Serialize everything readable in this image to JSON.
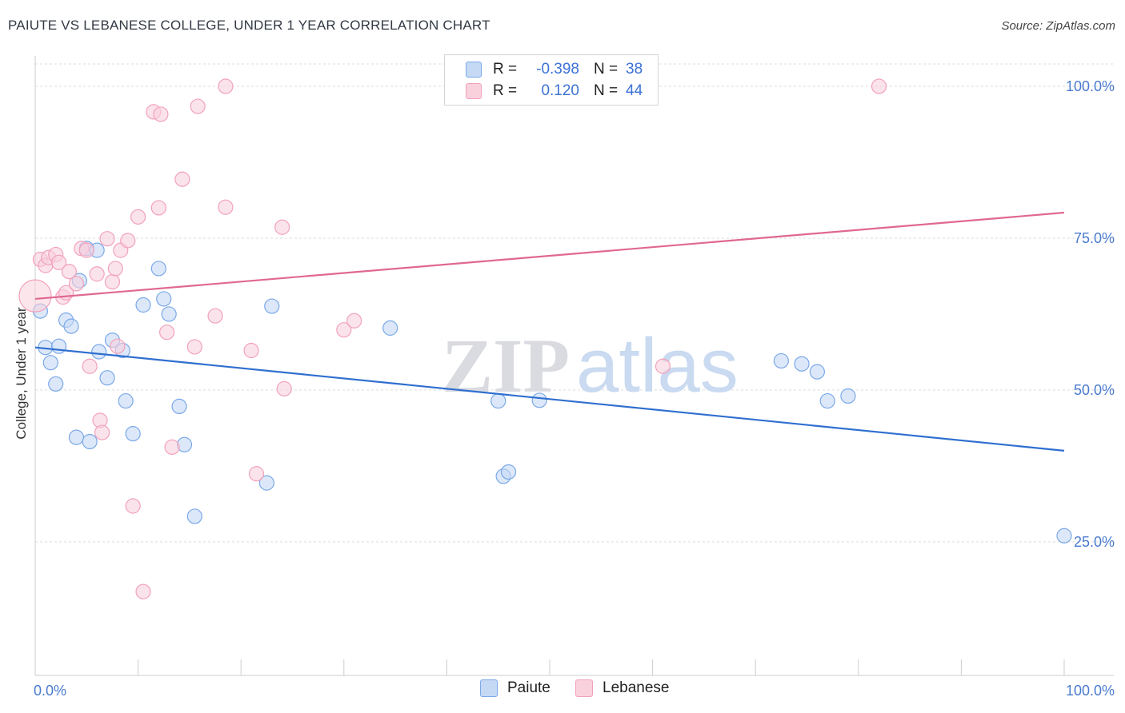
{
  "chart_data": {
    "type": "scatter",
    "title": "PAIUTE VS LEBANESE COLLEGE, UNDER 1 YEAR CORRELATION CHART",
    "source": "Source: ZipAtlas.com",
    "xlabel": "",
    "ylabel": "College, Under 1 year",
    "xlim": [
      0,
      100
    ],
    "ylim": [
      3,
      105
    ],
    "x_tick_labels": [
      "0.0%",
      "100.0%"
    ],
    "y_ticks": [
      25,
      50,
      75,
      100
    ],
    "y_tick_labels": [
      "25.0%",
      "50.0%",
      "75.0%",
      "100.0%"
    ],
    "grid": "horizontal-dashed",
    "watermark": {
      "zip": "ZIP",
      "atlas": "atlas"
    },
    "legend": {
      "position": "top-center",
      "rows": [
        {
          "r_label": "R =",
          "r_value": "-0.398",
          "n_label": "N =",
          "n_value": "38"
        },
        {
          "r_label": "R =",
          "r_value": "0.120",
          "n_label": "N =",
          "n_value": "44"
        }
      ]
    },
    "series": [
      {
        "name": "Paiute",
        "color": "#7aa8e8",
        "fill": "#c5d9f5",
        "line_color": "#2f6fd0",
        "trend": {
          "x": [
            0,
            100
          ],
          "y": [
            57,
            40
          ]
        },
        "points": [
          {
            "x": 0.5,
            "y": 63
          },
          {
            "x": 1,
            "y": 57
          },
          {
            "x": 1.5,
            "y": 54.5
          },
          {
            "x": 2,
            "y": 51
          },
          {
            "x": 2.3,
            "y": 57.2
          },
          {
            "x": 3,
            "y": 61.5
          },
          {
            "x": 3.5,
            "y": 60.5
          },
          {
            "x": 4,
            "y": 42.2
          },
          {
            "x": 4.3,
            "y": 68
          },
          {
            "x": 5,
            "y": 73.3
          },
          {
            "x": 5.3,
            "y": 41.5
          },
          {
            "x": 6,
            "y": 73
          },
          {
            "x": 6.2,
            "y": 56.3
          },
          {
            "x": 7,
            "y": 52
          },
          {
            "x": 7.5,
            "y": 58.2
          },
          {
            "x": 8.5,
            "y": 56.5
          },
          {
            "x": 8.8,
            "y": 48.2
          },
          {
            "x": 9.5,
            "y": 42.8
          },
          {
            "x": 10.5,
            "y": 64
          },
          {
            "x": 12,
            "y": 70
          },
          {
            "x": 12.5,
            "y": 65
          },
          {
            "x": 13,
            "y": 62.5
          },
          {
            "x": 14,
            "y": 47.3
          },
          {
            "x": 14.5,
            "y": 41
          },
          {
            "x": 15.5,
            "y": 29.2
          },
          {
            "x": 22.5,
            "y": 34.7
          },
          {
            "x": 23,
            "y": 63.8
          },
          {
            "x": 34.5,
            "y": 60.2
          },
          {
            "x": 45,
            "y": 48.2
          },
          {
            "x": 45.5,
            "y": 35.8
          },
          {
            "x": 46,
            "y": 36.5
          },
          {
            "x": 49,
            "y": 48.3
          },
          {
            "x": 72.5,
            "y": 54.8
          },
          {
            "x": 74.5,
            "y": 54.3
          },
          {
            "x": 76,
            "y": 53
          },
          {
            "x": 77,
            "y": 48.2
          },
          {
            "x": 79,
            "y": 49
          },
          {
            "x": 100,
            "y": 26
          }
        ]
      },
      {
        "name": "Lebanese",
        "color": "#f2a2bb",
        "fill": "#f9d1dd",
        "line_color": "#e0688f",
        "trend": {
          "x": [
            0,
            100
          ],
          "y": [
            65,
            79.2
          ]
        },
        "points": [
          {
            "x": 0,
            "y": 65.5,
            "big": true
          },
          {
            "x": 0.5,
            "y": 71.5
          },
          {
            "x": 1,
            "y": 70.5
          },
          {
            "x": 1.3,
            "y": 71.8
          },
          {
            "x": 2,
            "y": 72.3
          },
          {
            "x": 2.3,
            "y": 71
          },
          {
            "x": 2.7,
            "y": 65.3
          },
          {
            "x": 3,
            "y": 66
          },
          {
            "x": 3.3,
            "y": 69.5
          },
          {
            "x": 4,
            "y": 67.5
          },
          {
            "x": 4.5,
            "y": 73.3
          },
          {
            "x": 5,
            "y": 73
          },
          {
            "x": 5.3,
            "y": 53.9
          },
          {
            "x": 6,
            "y": 69.1
          },
          {
            "x": 6.3,
            "y": 45
          },
          {
            "x": 6.5,
            "y": 43
          },
          {
            "x": 7,
            "y": 74.9
          },
          {
            "x": 7.5,
            "y": 67.8
          },
          {
            "x": 7.8,
            "y": 70
          },
          {
            "x": 8,
            "y": 57.2
          },
          {
            "x": 8.3,
            "y": 73
          },
          {
            "x": 9,
            "y": 74.6
          },
          {
            "x": 9.5,
            "y": 30.9
          },
          {
            "x": 10,
            "y": 78.5
          },
          {
            "x": 10.5,
            "y": 16.8
          },
          {
            "x": 11.5,
            "y": 95.8
          },
          {
            "x": 12,
            "y": 80
          },
          {
            "x": 12.2,
            "y": 95.4
          },
          {
            "x": 12.8,
            "y": 59.5
          },
          {
            "x": 13.3,
            "y": 40.6
          },
          {
            "x": 14.3,
            "y": 84.7
          },
          {
            "x": 15.5,
            "y": 57.1
          },
          {
            "x": 15.8,
            "y": 96.7
          },
          {
            "x": 17.5,
            "y": 62.2
          },
          {
            "x": 18.5,
            "y": 100
          },
          {
            "x": 18.5,
            "y": 80.1
          },
          {
            "x": 21,
            "y": 56.5
          },
          {
            "x": 21.5,
            "y": 36.2
          },
          {
            "x": 24,
            "y": 76.8
          },
          {
            "x": 24.2,
            "y": 50.2
          },
          {
            "x": 30,
            "y": 59.9
          },
          {
            "x": 31,
            "y": 61.4
          },
          {
            "x": 61,
            "y": 53.9
          },
          {
            "x": 82,
            "y": 100
          }
        ]
      }
    ]
  }
}
